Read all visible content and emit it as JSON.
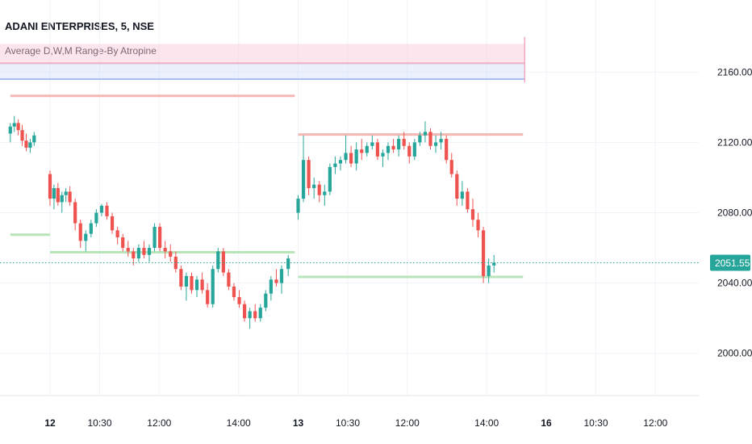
{
  "header": {
    "symbol_title": "ADANI ENTERPRISES, 5, NSE",
    "indicator_title": "Average D,W,M Range-By Atropine"
  },
  "chart_data": {
    "type": "candlestick",
    "title": "ADANI ENTERPRISES, 5, NSE",
    "indicator": "Average D,W,M Range-By Atropine",
    "y_ticks": [
      2160,
      2120,
      2080,
      2040,
      2000
    ],
    "y_tick_labels": [
      "2160.00",
      "2120.00",
      "2080.00",
      "2040.00",
      "2000.00"
    ],
    "ylim": [
      1976,
      2201
    ],
    "x_ticks": [
      {
        "label": "12",
        "bold": true,
        "minute": 0
      },
      {
        "label": "10:30",
        "bold": false,
        "minute": 75
      },
      {
        "label": "12:00",
        "bold": false,
        "minute": 165
      },
      {
        "label": "14:00",
        "bold": false,
        "minute": 285
      },
      {
        "label": "13",
        "bold": true,
        "minute": 375
      },
      {
        "label": "10:30",
        "bold": false,
        "minute": 450
      },
      {
        "label": "12:00",
        "bold": false,
        "minute": 540
      },
      {
        "label": "14:00",
        "bold": false,
        "minute": 660
      },
      {
        "label": "16",
        "bold": true,
        "minute": 750
      },
      {
        "label": "10:30",
        "bold": false,
        "minute": 825
      },
      {
        "label": "12:00",
        "bold": false,
        "minute": 915
      }
    ],
    "last_price": 2051.55,
    "last_price_label": "2051.55",
    "colors": {
      "up": "#26a69a",
      "down": "#ef5350",
      "last_price": "#26a69a",
      "resistance": "#f5b7b1",
      "support": "#b7e4b9",
      "monthly_upper": "#f8c6d8",
      "monthly_lower": "#c7d5f7",
      "grid": "#f0f3fa"
    },
    "levels": [
      {
        "name": "resistance",
        "y": 2146.5,
        "x_from": -60,
        "x_to": 0
      },
      {
        "name": "resistance",
        "y": 2146.5,
        "x_from": 0,
        "x_to": 370
      },
      {
        "name": "resistance",
        "y": 2124.5,
        "x_from": 375,
        "x_to": 715
      },
      {
        "name": "support",
        "y": 2067.5,
        "x_from": -60,
        "x_to": 0
      },
      {
        "name": "support",
        "y": 2057.5,
        "x_from": 0,
        "x_to": 370
      },
      {
        "name": "support",
        "y": 2043.5,
        "x_from": 375,
        "x_to": 715
      }
    ],
    "candles": [
      [
        2125,
        2131,
        2120,
        2129
      ],
      [
        2129,
        2135,
        2126,
        2131
      ],
      [
        2131,
        2133,
        2124,
        2127
      ],
      [
        2127,
        2130,
        2118,
        2121
      ],
      [
        2121,
        2125,
        2115,
        2117
      ],
      [
        2117,
        2122,
        2114,
        2120
      ],
      [
        2120,
        2126,
        2118,
        2124
      ],
      [
        2102,
        2104,
        2084,
        2088
      ],
      [
        2088,
        2096,
        2082,
        2094
      ],
      [
        2094,
        2097,
        2084,
        2086
      ],
      [
        2086,
        2092,
        2080,
        2090
      ],
      [
        2090,
        2094,
        2086,
        2092
      ],
      [
        2092,
        2095,
        2084,
        2086
      ],
      [
        2086,
        2088,
        2070,
        2074
      ],
      [
        2074,
        2076,
        2060,
        2064
      ],
      [
        2064,
        2070,
        2058,
        2068
      ],
      [
        2068,
        2076,
        2066,
        2074
      ],
      [
        2074,
        2082,
        2072,
        2080
      ],
      [
        2080,
        2085,
        2078,
        2084
      ],
      [
        2084,
        2086,
        2076,
        2078
      ],
      [
        2078,
        2080,
        2068,
        2070
      ],
      [
        2070,
        2072,
        2062,
        2066
      ],
      [
        2066,
        2068,
        2058,
        2060
      ],
      [
        2060,
        2064,
        2055,
        2058
      ],
      [
        2058,
        2060,
        2050,
        2054
      ],
      [
        2054,
        2062,
        2052,
        2060
      ],
      [
        2060,
        2064,
        2054,
        2056
      ],
      [
        2056,
        2062,
        2052,
        2060
      ],
      [
        2060,
        2074,
        2058,
        2072
      ],
      [
        2072,
        2074,
        2058,
        2060
      ],
      [
        2060,
        2064,
        2054,
        2058
      ],
      [
        2058,
        2062,
        2052,
        2055
      ],
      [
        2055,
        2058,
        2046,
        2048
      ],
      [
        2048,
        2050,
        2036,
        2038
      ],
      [
        2038,
        2046,
        2030,
        2044
      ],
      [
        2044,
        2046,
        2034,
        2036
      ],
      [
        2036,
        2044,
        2032,
        2042
      ],
      [
        2042,
        2046,
        2034,
        2036
      ],
      [
        2036,
        2040,
        2026,
        2028
      ],
      [
        2028,
        2050,
        2026,
        2048
      ],
      [
        2048,
        2060,
        2046,
        2058
      ],
      [
        2058,
        2060,
        2044,
        2046
      ],
      [
        2046,
        2048,
        2036,
        2038
      ],
      [
        2038,
        2040,
        2030,
        2032
      ],
      [
        2032,
        2036,
        2026,
        2028
      ],
      [
        2028,
        2030,
        2018,
        2020
      ],
      [
        2020,
        2026,
        2014,
        2024
      ],
      [
        2024,
        2028,
        2018,
        2020
      ],
      [
        2020,
        2028,
        2018,
        2026
      ],
      [
        2026,
        2036,
        2024,
        2034
      ],
      [
        2034,
        2044,
        2030,
        2042
      ],
      [
        2042,
        2048,
        2038,
        2040
      ],
      [
        2040,
        2050,
        2034,
        2048
      ],
      [
        2048,
        2056,
        2044,
        2054
      ],
      [
        2080,
        2090,
        2076,
        2088
      ],
      [
        2088,
        2124,
        2086,
        2110
      ],
      [
        2110,
        2112,
        2090,
        2094
      ],
      [
        2094,
        2100,
        2088,
        2096
      ],
      [
        2096,
        2098,
        2086,
        2090
      ],
      [
        2090,
        2096,
        2084,
        2092
      ],
      [
        2092,
        2108,
        2090,
        2106
      ],
      [
        2106,
        2112,
        2102,
        2108
      ],
      [
        2108,
        2112,
        2104,
        2110
      ],
      [
        2110,
        2124,
        2108,
        2114
      ],
      [
        2114,
        2118,
        2106,
        2108
      ],
      [
        2108,
        2120,
        2104,
        2116
      ],
      [
        2116,
        2122,
        2110,
        2114
      ],
      [
        2114,
        2120,
        2112,
        2118
      ],
      [
        2118,
        2124,
        2116,
        2120
      ],
      [
        2120,
        2122,
        2110,
        2112
      ],
      [
        2112,
        2116,
        2106,
        2114
      ],
      [
        2114,
        2120,
        2110,
        2118
      ],
      [
        2118,
        2122,
        2114,
        2116
      ],
      [
        2116,
        2124,
        2112,
        2122
      ],
      [
        2122,
        2126,
        2116,
        2118
      ],
      [
        2118,
        2120,
        2108,
        2112
      ],
      [
        2112,
        2122,
        2110,
        2120
      ],
      [
        2120,
        2126,
        2118,
        2124
      ],
      [
        2124,
        2132,
        2120,
        2126
      ],
      [
        2126,
        2128,
        2116,
        2118
      ],
      [
        2118,
        2124,
        2114,
        2120
      ],
      [
        2120,
        2126,
        2116,
        2122
      ],
      [
        2122,
        2124,
        2108,
        2110
      ],
      [
        2110,
        2114,
        2100,
        2102
      ],
      [
        2102,
        2104,
        2084,
        2088
      ],
      [
        2088,
        2098,
        2084,
        2092
      ],
      [
        2092,
        2094,
        2080,
        2082
      ],
      [
        2082,
        2088,
        2072,
        2076
      ],
      [
        2076,
        2080,
        2066,
        2070
      ],
      [
        2070,
        2072,
        2040,
        2044
      ],
      [
        2044,
        2054,
        2040,
        2050
      ],
      [
        2050,
        2056,
        2046,
        2051.55
      ]
    ],
    "candle_x": [
      -60,
      -54,
      -48,
      -42,
      -36,
      -30,
      -24,
      0,
      6,
      12,
      18,
      24,
      30,
      38,
      46,
      54,
      62,
      70,
      78,
      86,
      94,
      102,
      110,
      118,
      126,
      134,
      142,
      150,
      158,
      166,
      174,
      182,
      190,
      198,
      206,
      214,
      222,
      230,
      238,
      246,
      254,
      262,
      270,
      278,
      286,
      294,
      302,
      310,
      318,
      326,
      334,
      342,
      350,
      360,
      375,
      383,
      391,
      399,
      407,
      415,
      423,
      431,
      439,
      447,
      455,
      463,
      471,
      479,
      487,
      495,
      503,
      511,
      519,
      527,
      535,
      543,
      551,
      559,
      567,
      575,
      583,
      591,
      599,
      607,
      615,
      623,
      631,
      639,
      647,
      655,
      663,
      671
    ]
  }
}
